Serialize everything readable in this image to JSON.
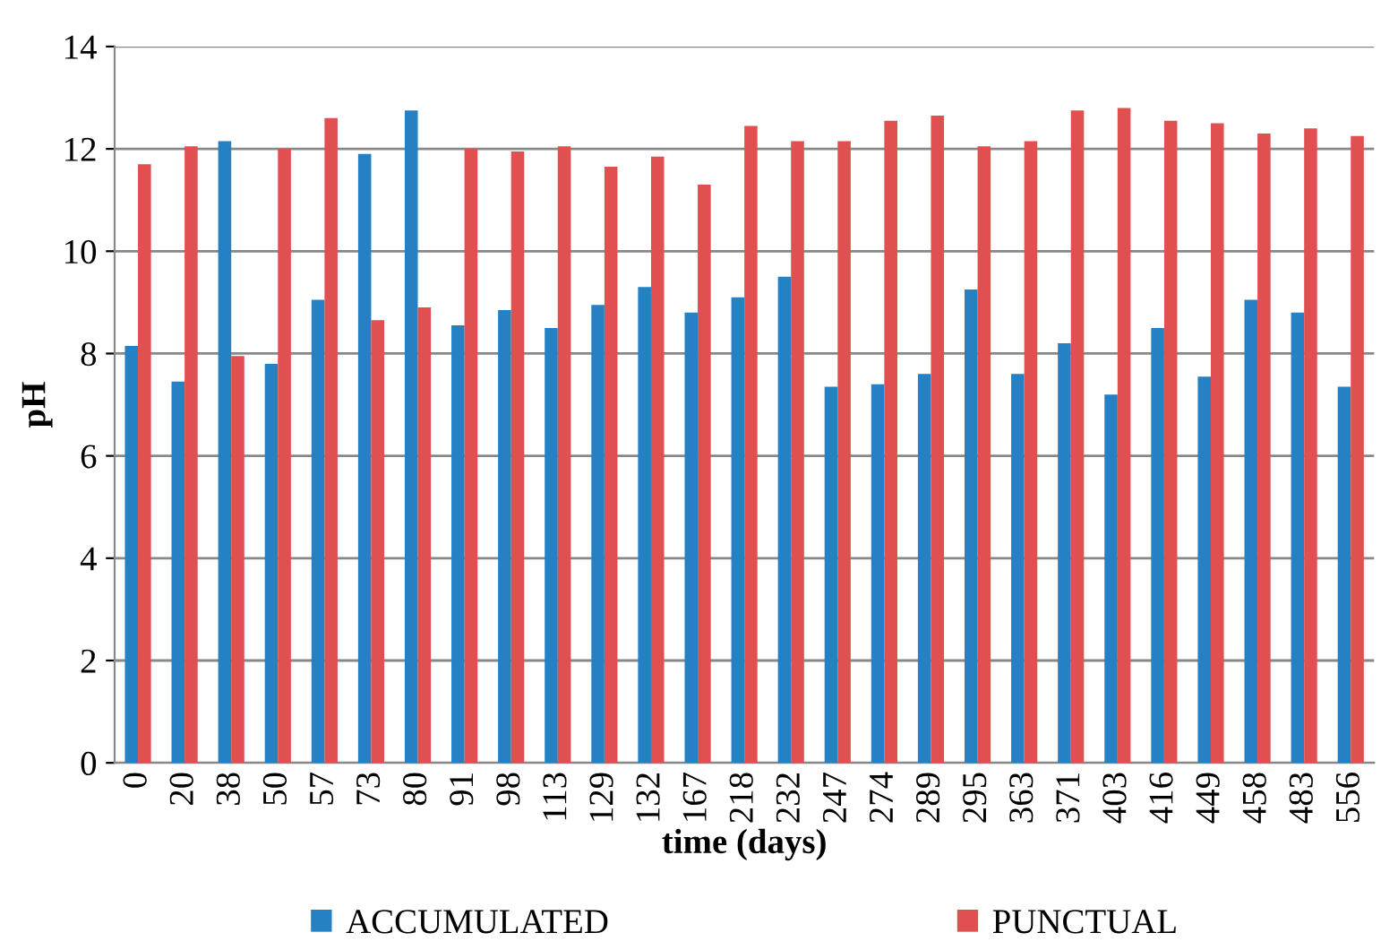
{
  "chart_data": {
    "type": "bar",
    "xlabel": "time (days)",
    "ylabel": "pH",
    "categories": [
      "0",
      "20",
      "38",
      "50",
      "57",
      "73",
      "80",
      "91",
      "98",
      "113",
      "129",
      "132",
      "167",
      "218",
      "232",
      "247",
      "274",
      "289",
      "295",
      "363",
      "371",
      "403",
      "416",
      "449",
      "458",
      "483",
      "556"
    ],
    "series": [
      {
        "name": "ACCUMULATED",
        "color": "#2581c4",
        "values": [
          8.15,
          7.45,
          12.15,
          7.8,
          9.05,
          11.9,
          12.75,
          8.55,
          8.85,
          8.5,
          8.95,
          9.3,
          8.8,
          9.1,
          9.5,
          7.35,
          7.4,
          7.6,
          9.25,
          7.6,
          8.2,
          7.2,
          8.5,
          7.55,
          9.05,
          8.8,
          7.35
        ]
      },
      {
        "name": "PUNCTUAL",
        "color": "#e05050",
        "values": [
          11.7,
          12.05,
          7.95,
          12.0,
          12.6,
          8.65,
          8.9,
          12.0,
          11.95,
          12.05,
          11.65,
          11.85,
          11.3,
          12.45,
          12.15,
          12.15,
          12.55,
          12.65,
          12.05,
          12.15,
          12.75,
          12.8,
          12.55,
          12.5,
          12.3,
          12.4,
          12.25
        ]
      }
    ],
    "ylim": [
      0,
      14
    ],
    "yticks": [
      0,
      2,
      4,
      6,
      8,
      10,
      12,
      14
    ],
    "grid": "y",
    "legend": "bottom"
  }
}
